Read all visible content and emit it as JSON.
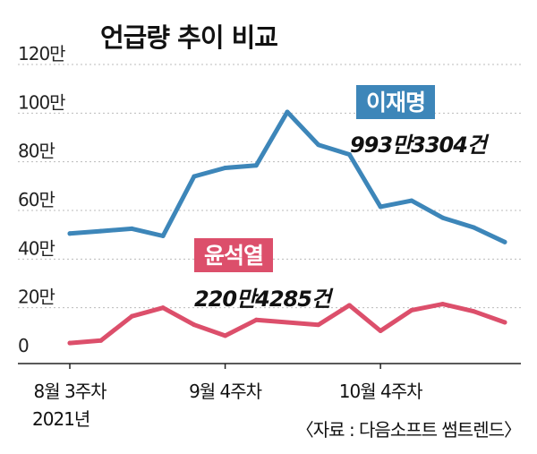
{
  "chart_data": {
    "type": "line",
    "title": "언급량 추이 비교",
    "y_tick_labels": [
      "120만",
      "100만",
      "80만",
      "60만",
      "40만",
      "20만",
      "0"
    ],
    "ylim": [
      0,
      1200000
    ],
    "grid": "horizontal dashed",
    "x_tick_labels": [
      {
        "index": 0,
        "label": "8월 3주차"
      },
      {
        "index": 5,
        "label": "9월 4주차"
      },
      {
        "index": 10,
        "label": "10월 4주차"
      }
    ],
    "x_year_label": "2021년",
    "x_count": 15,
    "series": [
      {
        "name": "이재명",
        "color": "#3d86b9",
        "total_label": "993만3304건",
        "values": [
          505000,
          515000,
          525000,
          495000,
          740000,
          775000,
          785000,
          1005000,
          870000,
          830000,
          615000,
          640000,
          570000,
          530000,
          470000
        ]
      },
      {
        "name": "윤석열",
        "color": "#dc4f6b",
        "total_label": "220만4285건",
        "values": [
          55000,
          65000,
          165000,
          200000,
          130000,
          85000,
          150000,
          140000,
          130000,
          210000,
          105000,
          190000,
          215000,
          185000,
          140000
        ]
      }
    ]
  },
  "source_note": "〈자료 : 다음소프트 썸트렌드〉"
}
